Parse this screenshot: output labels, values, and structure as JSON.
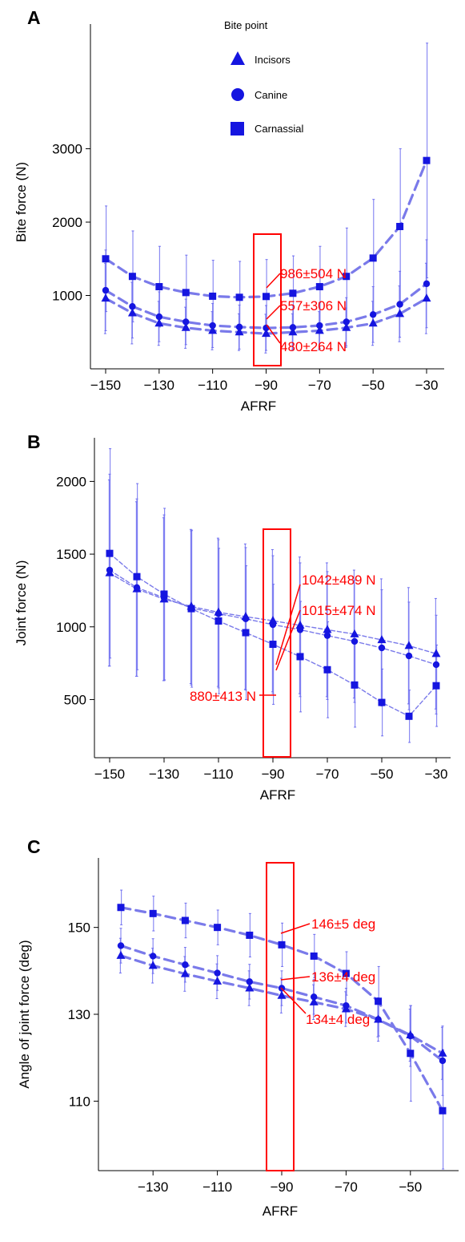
{
  "chart_data": [
    {
      "panel": "A",
      "type": "line",
      "xlabel": "AFRF",
      "ylabel": "Bite force (N)",
      "xlim": [
        -155,
        -25
      ],
      "ylim": [
        0,
        4700
      ],
      "xticks": [
        -150,
        -130,
        -110,
        -90,
        -70,
        -50,
        -30
      ],
      "yticks": [
        1000,
        2000,
        3000
      ],
      "x": [
        -150,
        -140,
        -130,
        -120,
        -110,
        -100,
        -90,
        -80,
        -70,
        -60,
        -50,
        -40,
        -30
      ],
      "legend": {
        "title": "Bite point",
        "entries": [
          "Incisors",
          "Canine",
          "Carnassial"
        ]
      },
      "series": [
        {
          "name": "Incisors",
          "marker": "triangle",
          "values": [
            960,
            760,
            620,
            560,
            520,
            500,
            480,
            500,
            520,
            560,
            620,
            750,
            960
          ],
          "errors": [
            480,
            420,
            300,
            280,
            260,
            250,
            264,
            250,
            260,
            270,
            300,
            380,
            480
          ]
        },
        {
          "name": "Canine",
          "marker": "circle",
          "values": [
            1070,
            850,
            710,
            640,
            590,
            570,
            557,
            565,
            590,
            640,
            740,
            880,
            1160
          ],
          "errors": [
            550,
            430,
            340,
            310,
            300,
            300,
            306,
            300,
            310,
            330,
            380,
            450,
            600
          ]
        },
        {
          "name": "Carnassial",
          "marker": "square",
          "values": [
            1500,
            1260,
            1120,
            1040,
            990,
            975,
            986,
            1030,
            1120,
            1260,
            1510,
            1940,
            2840
          ],
          "errors": [
            720,
            620,
            550,
            510,
            490,
            490,
            504,
            510,
            550,
            660,
            800,
            1060,
            1600
          ]
        }
      ],
      "annotations": [
        "986±504 N",
        "557±306 N",
        "480±264 N"
      ]
    },
    {
      "panel": "B",
      "type": "line",
      "xlabel": "AFRF",
      "ylabel": "Joint force (N)",
      "xlim": [
        -155,
        -25
      ],
      "ylim": [
        100,
        2300
      ],
      "xticks": [
        -150,
        -130,
        -110,
        -90,
        -70,
        -50,
        -30
      ],
      "yticks": [
        500,
        1000,
        1500,
        2000
      ],
      "x": [
        -150,
        -140,
        -130,
        -120,
        -110,
        -100,
        -90,
        -80,
        -70,
        -60,
        -50,
        -40,
        -30
      ],
      "series": [
        {
          "name": "Incisors",
          "marker": "triangle",
          "values": [
            1370,
            1260,
            1190,
            1140,
            1100,
            1070,
            1042,
            1010,
            980,
            950,
            910,
            870,
            815
          ],
          "errors": [
            640,
            600,
            560,
            530,
            510,
            500,
            489,
            470,
            460,
            440,
            420,
            400,
            380
          ]
        },
        {
          "name": "Canine",
          "marker": "circle",
          "values": [
            1390,
            1270,
            1200,
            1130,
            1090,
            1055,
            1015,
            980,
            940,
            900,
            855,
            800,
            740
          ],
          "errors": [
            660,
            610,
            570,
            530,
            510,
            490,
            474,
            460,
            440,
            420,
            400,
            370,
            340
          ]
        },
        {
          "name": "Carnassial",
          "marker": "square",
          "values": [
            1505,
            1345,
            1225,
            1125,
            1040,
            960,
            880,
            795,
            705,
            600,
            480,
            385,
            595
          ],
          "errors": [
            720,
            640,
            590,
            540,
            500,
            460,
            413,
            380,
            330,
            290,
            230,
            180,
            280
          ]
        }
      ],
      "annotations": [
        "1042±489 N",
        "1015±474 N",
        "880±413 N"
      ]
    },
    {
      "panel": "C",
      "type": "line",
      "xlabel": "AFRF",
      "ylabel": "Angle of joint force (deg)",
      "xlim": [
        -145,
        -35
      ],
      "ylim": [
        94,
        166
      ],
      "xticks": [
        -130,
        -110,
        -90,
        -70,
        -50
      ],
      "yticks": [
        110,
        130,
        150
      ],
      "x": [
        -140,
        -130,
        -120,
        -110,
        -100,
        -90,
        -80,
        -70,
        -60,
        -50,
        -40
      ],
      "series": [
        {
          "name": "Incisors",
          "marker": "triangle",
          "values": [
            143.5,
            141.2,
            139.3,
            137.6,
            136.0,
            134.3,
            132.8,
            131.2,
            128.8,
            125.2,
            121.0
          ],
          "errors": [
            4,
            4,
            4,
            4,
            4,
            4,
            4,
            4,
            4,
            6,
            6
          ]
        },
        {
          "name": "Canine",
          "marker": "circle",
          "values": [
            145.8,
            143.4,
            141.4,
            139.5,
            137.5,
            136.0,
            134.0,
            132.0,
            128.8,
            125.0,
            119.3
          ],
          "errors": [
            4,
            4,
            4,
            4,
            4,
            4,
            4,
            4,
            5,
            7,
            8
          ]
        },
        {
          "name": "Carnassial",
          "marker": "square",
          "values": [
            154.6,
            153.2,
            151.6,
            150.0,
            148.2,
            146.0,
            143.4,
            139.4,
            133.0,
            121.0,
            107.8
          ],
          "errors": [
            4,
            4,
            4,
            4,
            5,
            5,
            5,
            5,
            8,
            11,
            14
          ]
        }
      ],
      "annotations": [
        "146±5 deg",
        "136±4 deg",
        "134±4 deg"
      ]
    }
  ],
  "colors": {
    "marker": "#1515e0",
    "line": "#7a7aea",
    "error": "#6e6ef0",
    "highlight": "#ff0000"
  }
}
